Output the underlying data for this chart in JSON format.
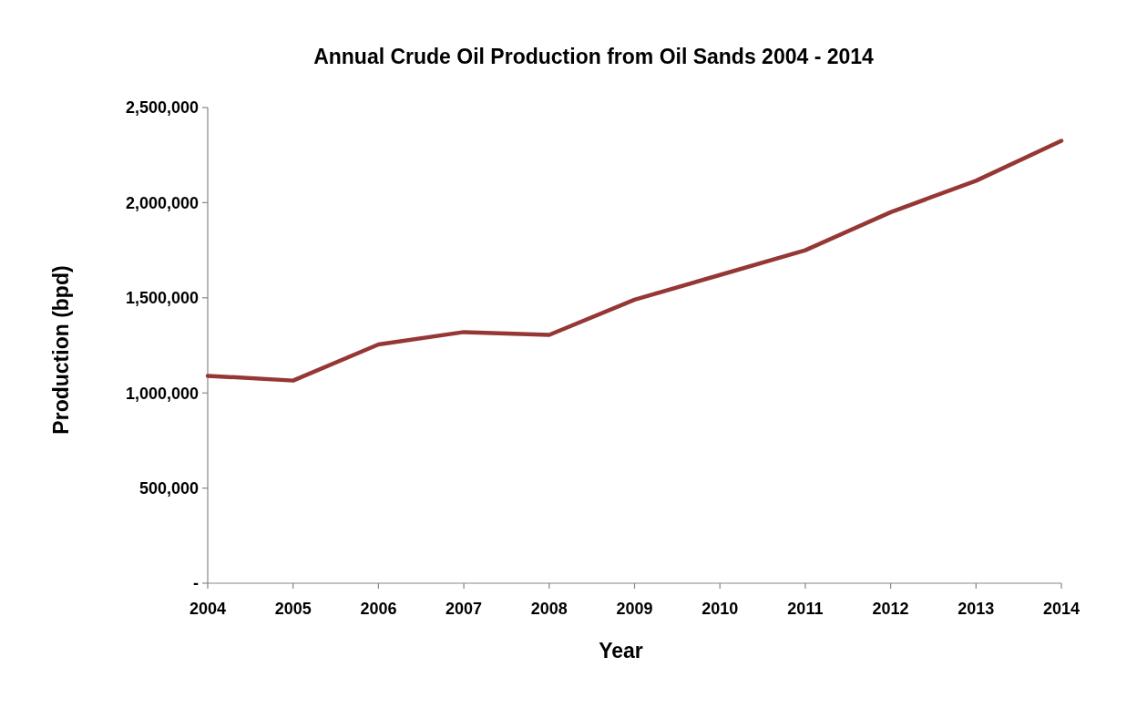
{
  "chart_data": {
    "type": "line",
    "title": "Annual Crude Oil Production from Oil Sands 2004 - 2014",
    "xlabel": "Year",
    "ylabel": "Production (bpd)",
    "categories": [
      "2004",
      "2005",
      "2006",
      "2007",
      "2008",
      "2009",
      "2010",
      "2011",
      "2012",
      "2013",
      "2014"
    ],
    "series": [
      {
        "color": "#953735",
        "values": [
          1090000,
          1065000,
          1255000,
          1320000,
          1305000,
          1490000,
          1620000,
          1750000,
          1950000,
          2115000,
          2325000
        ]
      }
    ],
    "ylim": [
      0,
      2500000
    ],
    "yticks": [
      {
        "value": 0,
        "label": "-"
      },
      {
        "value": 500000,
        "label": "500,000"
      },
      {
        "value": 1000000,
        "label": "1,000,000"
      },
      {
        "value": 1500000,
        "label": "1,500,000"
      },
      {
        "value": 2000000,
        "label": "2,000,000"
      },
      {
        "value": 2500000,
        "label": "2,500,000"
      }
    ],
    "grid": false,
    "marker": "none",
    "line_style": "solid"
  }
}
